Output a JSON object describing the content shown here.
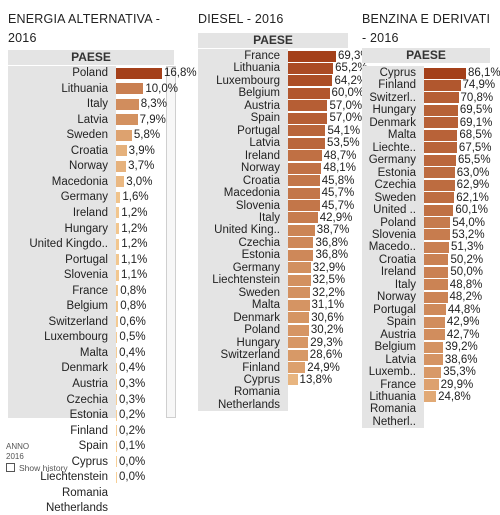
{
  "chart_data": [
    {
      "type": "bar",
      "title": "ENERGIA ALTERNATIVA -\n2016",
      "header": "PAESE",
      "categories": [
        "Poland",
        "Lithuania",
        "Italy",
        "Latvia",
        "Sweden",
        "Croatia",
        "Norway",
        "Macedonia",
        "Germany",
        "Ireland",
        "Hungary",
        "United Kingdo..",
        "Portugal",
        "Slovenia",
        "France",
        "Belgium",
        "Switzerland",
        "Luxembourg",
        "Malta",
        "Denmark",
        "Austria",
        "Czechia",
        "Estonia",
        "Finland",
        "Spain",
        "Cyprus",
        "Liechtenstein",
        "Romania",
        "Netherlands"
      ],
      "values": [
        16.8,
        10.0,
        8.3,
        7.9,
        5.8,
        3.9,
        3.7,
        3.0,
        1.6,
        1.2,
        1.2,
        1.2,
        1.1,
        1.1,
        0.8,
        0.8,
        0.6,
        0.5,
        0.4,
        0.4,
        0.3,
        0.3,
        0.2,
        0.2,
        0.1,
        0.0,
        0.0,
        null,
        null
      ],
      "labels": [
        "16,8%",
        "10,0%",
        "8,3%",
        "7,9%",
        "5,8%",
        "3,9%",
        "3,7%",
        "3,0%",
        "1,6%",
        "1,2%",
        "1,2%",
        "1,2%",
        "1,1%",
        "1,1%",
        "0,8%",
        "0,8%",
        "0,6%",
        "0,5%",
        "0,4%",
        "0,4%",
        "0,3%",
        "0,3%",
        "0,2%",
        "0,2%",
        "0,1%",
        "0,0%",
        "0,0%",
        "",
        ""
      ],
      "colors": {
        "dark": "#a4401a",
        "light": "#f7cf96"
      }
    },
    {
      "type": "bar",
      "title": "DIESEL - 2016",
      "header": "PAESE",
      "categories": [
        "France",
        "Lithuania",
        "Luxembourg",
        "Belgium",
        "Austria",
        "Spain",
        "Portugal",
        "Latvia",
        "Ireland",
        "Norway",
        "Croatia",
        "Macedonia",
        "Slovenia",
        "Italy",
        "United King..",
        "Czechia",
        "Estonia",
        "Germany",
        "Liechtenstein",
        "Sweden",
        "Malta",
        "Denmark",
        "Poland",
        "Hungary",
        "Switzerland",
        "Finland",
        "Cyprus",
        "Romania",
        "Netherlands"
      ],
      "values": [
        69.3,
        65.2,
        64.2,
        60.0,
        57.0,
        57.0,
        54.1,
        53.5,
        48.7,
        48.1,
        45.8,
        45.7,
        45.7,
        42.9,
        38.7,
        36.8,
        36.8,
        32.9,
        32.5,
        32.2,
        31.1,
        30.6,
        30.2,
        29.3,
        28.6,
        24.9,
        13.8,
        null,
        null
      ],
      "labels": [
        "69,3%",
        "65,2%",
        "64,2%",
        "60,0%",
        "57,0%",
        "57,0%",
        "54,1%",
        "53,5%",
        "48,7%",
        "48,1%",
        "45,8%",
        "45,7%",
        "45,7%",
        "42,9%",
        "38,7%",
        "36,8%",
        "36,8%",
        "32,9%",
        "32,5%",
        "32,2%",
        "31,1%",
        "30,6%",
        "30,2%",
        "29,3%",
        "28,6%",
        "24,9%",
        "13,8%",
        "",
        ""
      ],
      "colors": {
        "dark": "#a4401a",
        "light": "#f7cf96"
      }
    },
    {
      "type": "bar",
      "title": "BENZINA E DERIVATI\n- 2016",
      "header": "PAESE",
      "categories": [
        "Cyprus",
        "Finland",
        "Switzerl..",
        "Hungary",
        "Denmark",
        "Malta",
        "Liechte..",
        "Germany",
        "Estonia",
        "Czechia",
        "Sweden",
        "United ..",
        "Poland",
        "Slovenia",
        "Macedo..",
        "Croatia",
        "Ireland",
        "Italy",
        "Norway",
        "Portugal",
        "Spain",
        "Austria",
        "Belgium",
        "Latvia",
        "Luxemb..",
        "France",
        "Lithuania",
        "Romania",
        "Netherl.."
      ],
      "values": [
        86.1,
        74.9,
        70.8,
        69.5,
        69.1,
        68.5,
        67.5,
        65.5,
        63.0,
        62.9,
        62.1,
        60.1,
        54.0,
        53.2,
        51.3,
        50.2,
        50.0,
        48.8,
        48.2,
        44.8,
        42.9,
        42.7,
        39.2,
        38.6,
        35.3,
        29.9,
        24.8,
        null,
        null
      ],
      "labels": [
        "86,1%",
        "74,9%",
        "70,8%",
        "69,5%",
        "69,1%",
        "68,5%",
        "67,5%",
        "65,5%",
        "63,0%",
        "62,9%",
        "62,1%",
        "60,1%",
        "54,0%",
        "53,2%",
        "51,3%",
        "50,2%",
        "50,0%",
        "48,8%",
        "48,2%",
        "44,8%",
        "42,9%",
        "42,7%",
        "39,2%",
        "38,6%",
        "35,3%",
        "29,9%",
        "24,8%",
        "",
        ""
      ],
      "colors": {
        "dark": "#a4401a",
        "light": "#f7cf96"
      }
    }
  ],
  "footer": {
    "filter_label": "ANNO",
    "filter_value": "2016",
    "checkbox_label": "Show history"
  }
}
